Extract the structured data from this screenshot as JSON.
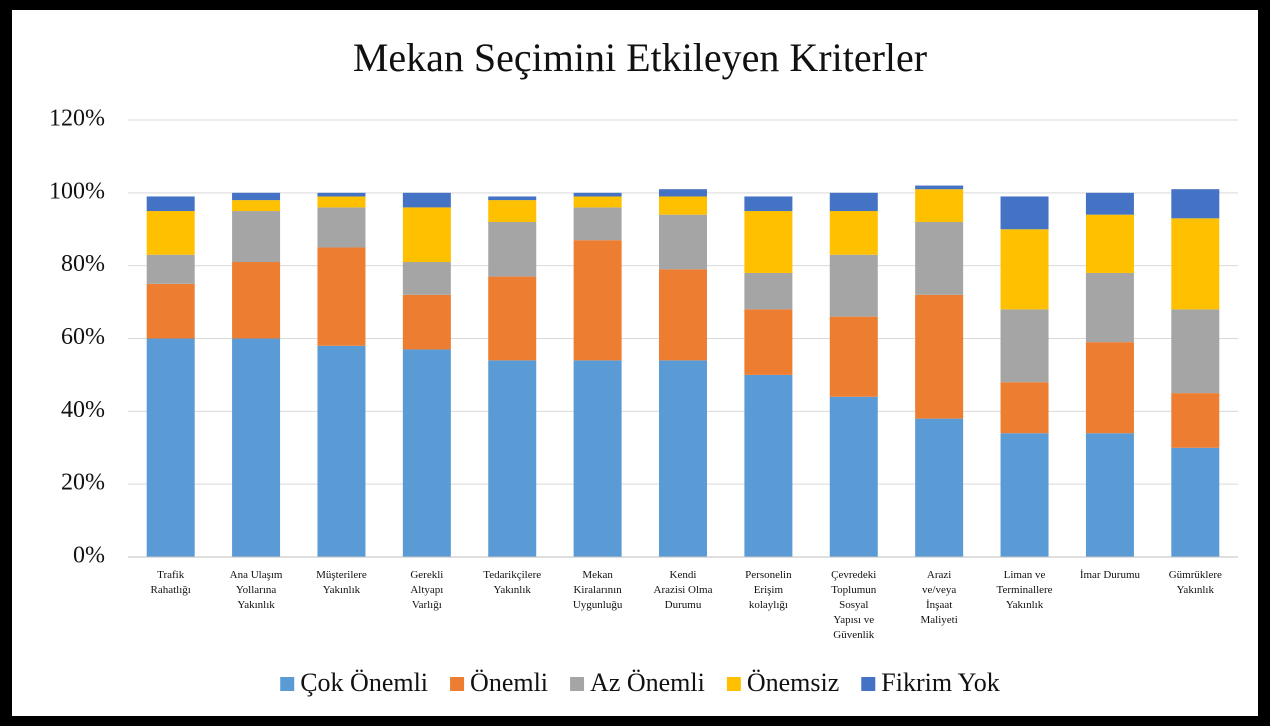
{
  "chart_data": {
    "type": "stacked_bar",
    "title": "Mekan Seçimini Etkileyen Kriterler",
    "categories": [
      "Trafik Rahatlığı",
      "Ana Ulaşım Yollarına Yakınlık",
      "Müşterilere Yakınlık",
      "Gerekli Altyapı Varlığı",
      "Tedarikçilere Yakınlık",
      "Mekan Kiralarının Uygunluğu",
      "Kendi Arazisi Olma Durumu",
      "Personelin Erişim kolaylığı",
      "Çevredeki Toplumun Sosyal Yapısı ve Güvenlik",
      "Arazi ve/veya İnşaat Maliyeti",
      "Liman ve Terminallere Yakınlık",
      "İmar Durumu",
      "Gümrüklere Yakınlık"
    ],
    "series": [
      {
        "name": "Çok Önemli",
        "color": "#5b9bd5",
        "values": [
          60,
          60,
          58,
          57,
          54,
          54,
          54,
          50,
          44,
          38,
          34,
          34,
          30
        ]
      },
      {
        "name": "Önemli",
        "color": "#ed7d31",
        "values": [
          15,
          21,
          27,
          15,
          23,
          33,
          25,
          18,
          22,
          34,
          14,
          25,
          15
        ]
      },
      {
        "name": "Az Önemli",
        "color": "#a5a5a5",
        "values": [
          8,
          14,
          11,
          9,
          15,
          9,
          15,
          10,
          17,
          20,
          20,
          19,
          23
        ]
      },
      {
        "name": "Önemsiz",
        "color": "#ffc000",
        "values": [
          12,
          3,
          3,
          15,
          6,
          3,
          5,
          17,
          12,
          9,
          22,
          16,
          25
        ]
      },
      {
        "name": "Fikrim Yok",
        "color": "#4472c4",
        "values": [
          4,
          2,
          1,
          4,
          1,
          1,
          2,
          4,
          5,
          1,
          9,
          6,
          8
        ]
      }
    ],
    "ylim": [
      0,
      120
    ],
    "yticks": [
      {
        "value": 0,
        "label": "0%"
      },
      {
        "value": 20,
        "label": "20%"
      },
      {
        "value": 40,
        "label": "40%"
      },
      {
        "value": 60,
        "label": "60%"
      },
      {
        "value": 80,
        "label": "80%"
      },
      {
        "value": 100,
        "label": "100%"
      },
      {
        "value": 120,
        "label": "120%"
      }
    ],
    "grid": true,
    "legend": "bottom"
  }
}
